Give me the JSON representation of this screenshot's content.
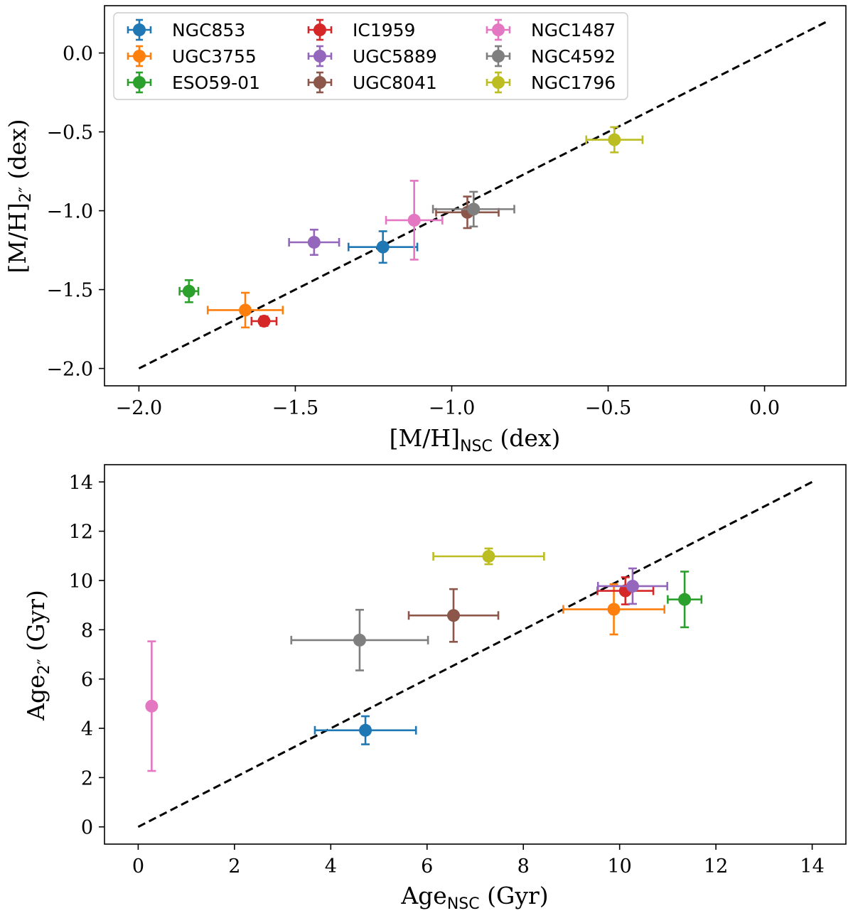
{
  "chart_data": [
    {
      "type": "scatter",
      "id": "metallicity",
      "xlabel_main": "[M/H]",
      "xlabel_sub": "NSC",
      "xlabel_tail": " (dex)",
      "ylabel_main": "[M/H]",
      "ylabel_sub": "2″",
      "ylabel_tail": " (dex)",
      "xlim": [
        -2.11,
        0.26
      ],
      "ylim": [
        -2.11,
        0.3
      ],
      "xticks": [
        -2.0,
        -1.5,
        -1.0,
        -0.5,
        0.0
      ],
      "xtick_labels": [
        "−2.0",
        "−1.5",
        "−1.0",
        "−0.5",
        "0.0"
      ],
      "yticks": [
        -2.0,
        -1.5,
        -1.0,
        -0.5,
        0.0
      ],
      "ytick_labels": [
        "−2.0",
        "−1.5",
        "−1.0",
        "−0.5",
        "0.0"
      ],
      "one_to_one_line": {
        "from": [
          -2.0,
          -2.0
        ],
        "to": [
          0.2,
          0.2
        ],
        "style": "dashed"
      },
      "legend": {
        "position": "top-left",
        "columns": 3
      },
      "series": [
        {
          "name": "NGC853",
          "color": "#1f77b4",
          "x": -1.22,
          "xerr": 0.11,
          "y": -1.23,
          "yerr": 0.1
        },
        {
          "name": "UGC3755",
          "color": "#ff7f0e",
          "x": -1.66,
          "xerr": 0.12,
          "y": -1.63,
          "yerr": 0.11
        },
        {
          "name": "ESO59-01",
          "color": "#2ca02c",
          "x": -1.84,
          "xerr": 0.03,
          "y": -1.51,
          "yerr": 0.07
        },
        {
          "name": "IC1959",
          "color": "#d62728",
          "x": -1.6,
          "xerr": 0.04,
          "y": -1.7,
          "yerr": 0.03
        },
        {
          "name": "UGC5889",
          "color": "#9467bd",
          "x": -1.44,
          "xerr": 0.08,
          "y": -1.2,
          "yerr": 0.08
        },
        {
          "name": "UGC8041",
          "color": "#8c564b",
          "x": -0.95,
          "xerr": 0.1,
          "y": -1.01,
          "yerr": 0.1
        },
        {
          "name": "NGC1487",
          "color": "#e377c2",
          "x": -1.12,
          "xerr": 0.09,
          "y": -1.06,
          "yerr": 0.25
        },
        {
          "name": "NGC4592",
          "color": "#7f7f7f",
          "x": -0.93,
          "xerr": 0.13,
          "y": -0.99,
          "yerr": 0.11
        },
        {
          "name": "NGC1796",
          "color": "#bcbd22",
          "x": -0.48,
          "xerr": 0.09,
          "y": -0.55,
          "yerr": 0.08
        }
      ]
    },
    {
      "type": "scatter",
      "id": "age",
      "xlabel_main": "Age",
      "xlabel_sub": "NSC",
      "xlabel_tail": " (Gyr)",
      "ylabel_main": "Age",
      "ylabel_sub": "2″",
      "ylabel_tail": " (Gyr)",
      "xlim": [
        -0.7,
        14.7
      ],
      "ylim": [
        -0.7,
        14.7
      ],
      "xticks": [
        0,
        2,
        4,
        6,
        8,
        10,
        12,
        14
      ],
      "xtick_labels": [
        "0",
        "2",
        "4",
        "6",
        "8",
        "10",
        "12",
        "14"
      ],
      "yticks": [
        0,
        2,
        4,
        6,
        8,
        10,
        12,
        14
      ],
      "ytick_labels": [
        "0",
        "2",
        "4",
        "6",
        "8",
        "10",
        "12",
        "14"
      ],
      "one_to_one_line": {
        "from": [
          0,
          0
        ],
        "to": [
          14,
          14
        ],
        "style": "dashed"
      },
      "series": [
        {
          "name": "NGC853",
          "color": "#1f77b4",
          "x": 4.72,
          "xerr": 1.05,
          "y": 3.92,
          "yerr": 0.57
        },
        {
          "name": "UGC3755",
          "color": "#ff7f0e",
          "x": 9.88,
          "xerr": 1.05,
          "y": 8.83,
          "yerr": 1.02
        },
        {
          "name": "ESO59-01",
          "color": "#2ca02c",
          "x": 11.35,
          "xerr": 0.35,
          "y": 9.23,
          "yerr": 1.13
        },
        {
          "name": "IC1959",
          "color": "#d62728",
          "x": 10.12,
          "xerr": 0.58,
          "y": 9.58,
          "yerr": 0.55
        },
        {
          "name": "UGC5889",
          "color": "#9467bd",
          "x": 10.27,
          "xerr": 0.72,
          "y": 9.77,
          "yerr": 0.72
        },
        {
          "name": "UGC8041",
          "color": "#8c564b",
          "x": 6.55,
          "xerr": 0.93,
          "y": 8.58,
          "yerr": 1.07
        },
        {
          "name": "NGC1487",
          "color": "#e377c2",
          "x": 0.28,
          "xerr": 0.0,
          "y": 4.9,
          "yerr": 2.63
        },
        {
          "name": "NGC4592",
          "color": "#7f7f7f",
          "x": 4.6,
          "xerr": 1.42,
          "y": 7.58,
          "yerr": 1.23
        },
        {
          "name": "NGC1796",
          "color": "#bcbd22",
          "x": 7.28,
          "xerr": 1.15,
          "y": 10.98,
          "yerr": 0.32
        }
      ]
    }
  ]
}
